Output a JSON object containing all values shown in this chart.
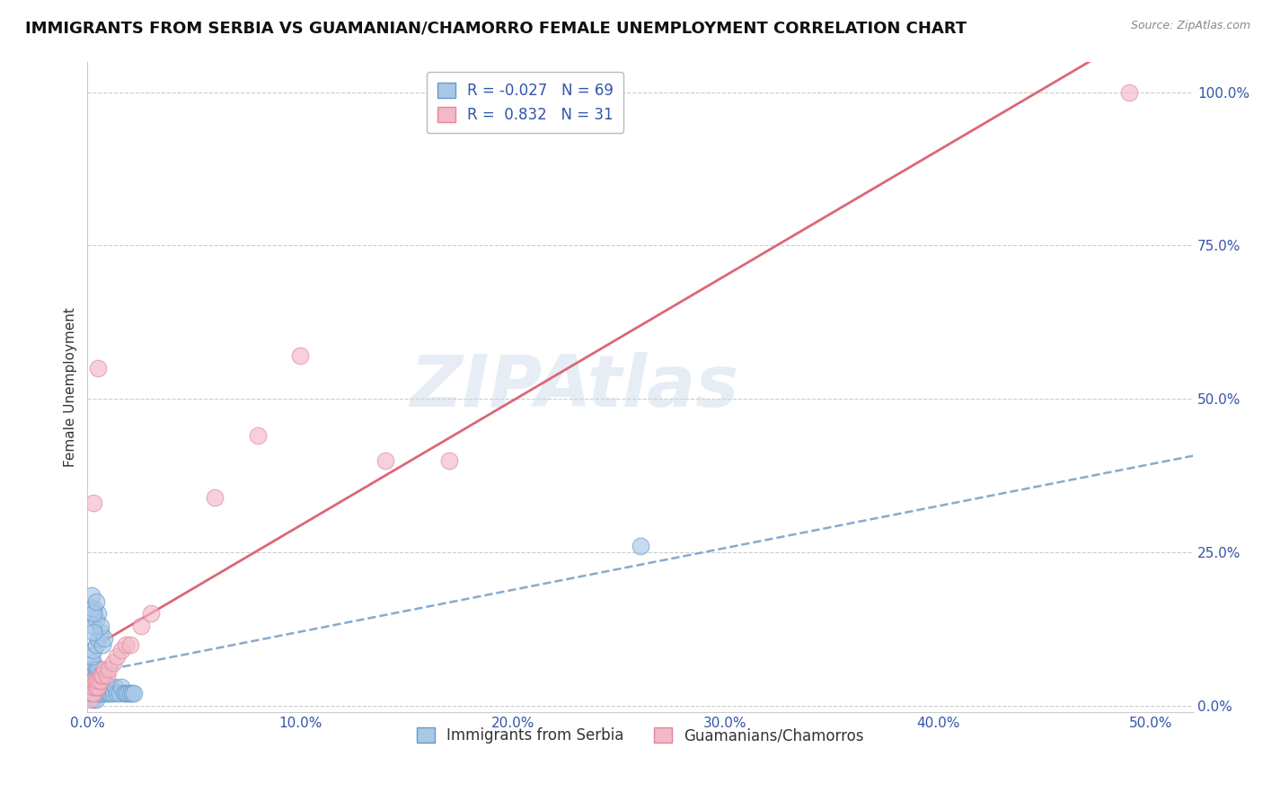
{
  "title": "IMMIGRANTS FROM SERBIA VS GUAMANIAN/CHAMORRO FEMALE UNEMPLOYMENT CORRELATION CHART",
  "source_text": "Source: ZipAtlas.com",
  "ylabel": "Female Unemployment",
  "watermark": "ZIPAtlas",
  "xlim": [
    0.0,
    0.52
  ],
  "ylim": [
    -0.01,
    1.05
  ],
  "xticks": [
    0.0,
    0.1,
    0.2,
    0.3,
    0.4,
    0.5
  ],
  "xtick_labels": [
    "0.0%",
    "10.0%",
    "20.0%",
    "30.0%",
    "40.0%",
    "50.0%"
  ],
  "yticks": [
    0.0,
    0.25,
    0.5,
    0.75,
    1.0
  ],
  "ytick_labels": [
    "0.0%",
    "25.0%",
    "50.0%",
    "75.0%",
    "100.0%"
  ],
  "serbia_color": "#a8c8e8",
  "serbia_edge": "#6699cc",
  "guam_color": "#f4b8c8",
  "guam_edge": "#dd8899",
  "serbia_line_color": "#88aacc",
  "guam_line_color": "#dd6677",
  "r_serbia": -0.027,
  "n_serbia": 69,
  "r_guam": 0.832,
  "n_guam": 31,
  "legend_label_serbia": "Immigrants from Serbia",
  "legend_label_guam": "Guamanians/Chamorros",
  "title_fontsize": 13,
  "axis_label_fontsize": 11,
  "tick_fontsize": 11,
  "legend_fontsize": 12,
  "serbia_x": [
    0.001,
    0.001,
    0.002,
    0.002,
    0.002,
    0.002,
    0.002,
    0.003,
    0.003,
    0.003,
    0.003,
    0.003,
    0.003,
    0.003,
    0.004,
    0.004,
    0.004,
    0.004,
    0.004,
    0.004,
    0.005,
    0.005,
    0.005,
    0.005,
    0.005,
    0.006,
    0.006,
    0.006,
    0.006,
    0.007,
    0.007,
    0.007,
    0.008,
    0.008,
    0.009,
    0.009,
    0.01,
    0.01,
    0.011,
    0.011,
    0.012,
    0.013,
    0.014,
    0.015,
    0.016,
    0.017,
    0.018,
    0.019,
    0.02,
    0.021,
    0.022,
    0.002,
    0.003,
    0.004,
    0.005,
    0.006,
    0.007,
    0.008,
    0.003,
    0.004,
    0.005,
    0.006,
    0.002,
    0.003,
    0.002,
    0.003,
    0.004,
    0.26,
    0.003
  ],
  "serbia_y": [
    0.02,
    0.03,
    0.02,
    0.03,
    0.04,
    0.05,
    0.06,
    0.01,
    0.02,
    0.03,
    0.04,
    0.05,
    0.06,
    0.07,
    0.01,
    0.02,
    0.03,
    0.04,
    0.05,
    0.06,
    0.02,
    0.03,
    0.04,
    0.05,
    0.06,
    0.02,
    0.03,
    0.04,
    0.05,
    0.02,
    0.03,
    0.04,
    0.03,
    0.04,
    0.02,
    0.03,
    0.02,
    0.03,
    0.02,
    0.03,
    0.02,
    0.03,
    0.02,
    0.02,
    0.03,
    0.02,
    0.02,
    0.02,
    0.02,
    0.02,
    0.02,
    0.08,
    0.09,
    0.1,
    0.11,
    0.12,
    0.1,
    0.11,
    0.13,
    0.14,
    0.15,
    0.13,
    0.16,
    0.16,
    0.18,
    0.15,
    0.17,
    0.26,
    0.12
  ],
  "guam_x": [
    0.001,
    0.002,
    0.002,
    0.003,
    0.003,
    0.003,
    0.004,
    0.004,
    0.005,
    0.005,
    0.006,
    0.006,
    0.007,
    0.008,
    0.009,
    0.01,
    0.012,
    0.014,
    0.016,
    0.018,
    0.02,
    0.025,
    0.03,
    0.06,
    0.08,
    0.1,
    0.14,
    0.17,
    0.003,
    0.49,
    0.005
  ],
  "guam_y": [
    0.01,
    0.02,
    0.03,
    0.02,
    0.03,
    0.04,
    0.03,
    0.04,
    0.03,
    0.04,
    0.04,
    0.05,
    0.05,
    0.06,
    0.05,
    0.06,
    0.07,
    0.08,
    0.09,
    0.1,
    0.1,
    0.13,
    0.15,
    0.34,
    0.44,
    0.57,
    0.4,
    0.4,
    0.33,
    1.0,
    0.55
  ]
}
